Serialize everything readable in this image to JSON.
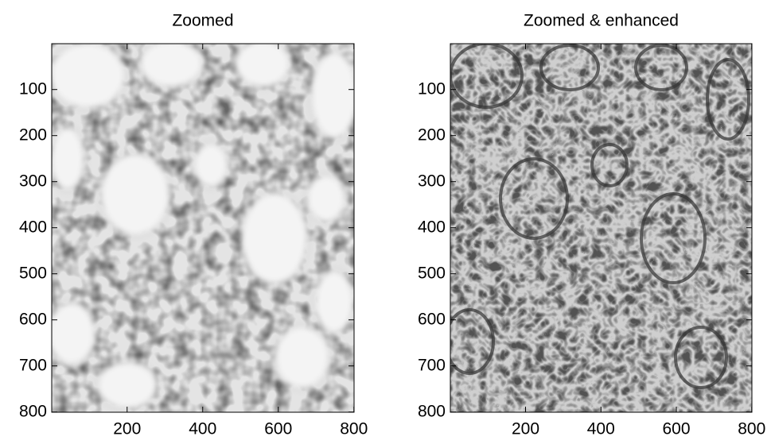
{
  "chart_data": [
    {
      "type": "image",
      "title": "Zoomed",
      "xlim": [
        0.5,
        800.5
      ],
      "ylim": [
        0.5,
        800.5
      ],
      "y_direction": "reverse",
      "xticks": [
        200,
        400,
        600,
        800
      ],
      "yticks": [
        100,
        200,
        300,
        400,
        500,
        600,
        700,
        800
      ]
    },
    {
      "type": "image",
      "title": "Zoomed & enhanced",
      "xlim": [
        0.5,
        800.5
      ],
      "ylim": [
        0.5,
        800.5
      ],
      "y_direction": "reverse",
      "xticks": [
        200,
        400,
        600,
        800
      ],
      "yticks": [
        100,
        200,
        300,
        400,
        500,
        600,
        700,
        800
      ]
    }
  ]
}
